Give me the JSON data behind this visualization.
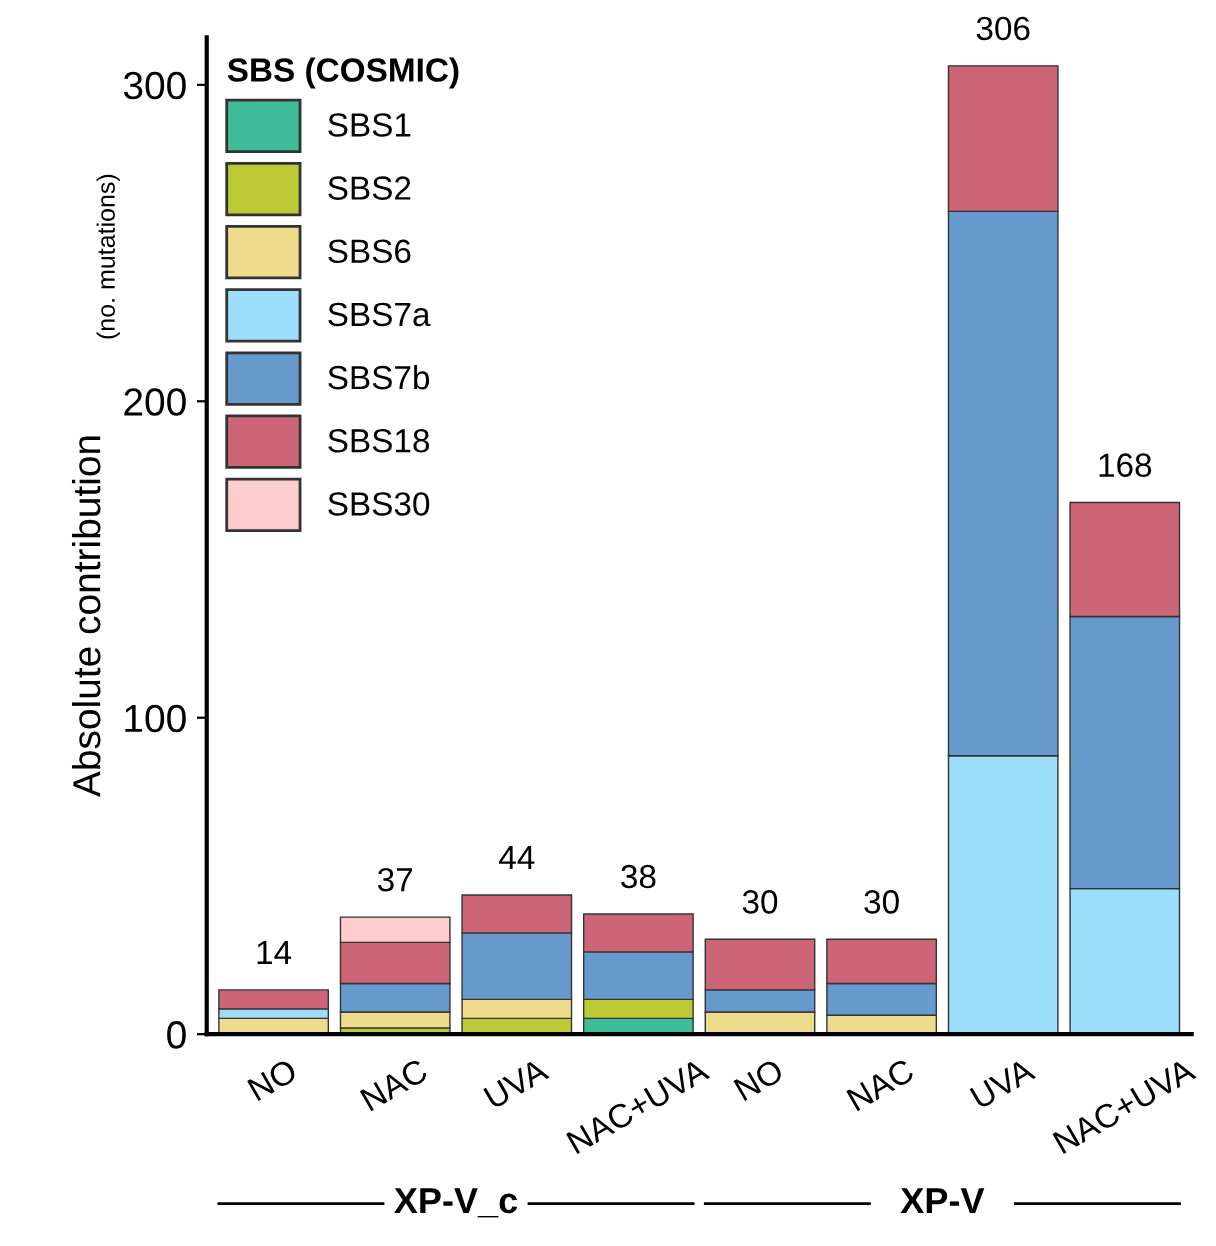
{
  "chart_data": {
    "type": "bar",
    "stacked": true,
    "legend_title": "SBS (COSMIC)",
    "ylabel": "Absolute contribution",
    "categories": [
      "NO",
      "NAC",
      "UVA",
      "NAC+UVA",
      "NO",
      "NAC",
      "UVA",
      "NAC+UVA"
    ],
    "annotations": [
      "(no. mutations)",
      "XP-V_c",
      "XP-V"
    ],
    "series": [
      {
        "name": "SBS1",
        "color": "#3fbc98",
        "values": [
          null,
          null,
          null,
          5,
          null,
          null,
          null,
          null
        ]
      },
      {
        "name": "SBS2",
        "color": "#bccb35",
        "values": [
          null,
          2,
          5,
          6,
          null,
          null,
          null,
          null
        ]
      },
      {
        "name": "SBS6",
        "color": "#eedc8c",
        "values": [
          5,
          5,
          6,
          null,
          7,
          6,
          null,
          null
        ]
      },
      {
        "name": "SBS7a",
        "color": "#9bddfb",
        "values": [
          3,
          null,
          null,
          null,
          null,
          null,
          88,
          46
        ]
      },
      {
        "name": "SBS7b",
        "color": "#6699cc",
        "values": [
          null,
          9,
          21,
          15,
          7,
          10,
          172,
          86
        ]
      },
      {
        "name": "SBS18",
        "color": "#cc6677",
        "values": [
          6,
          13,
          12,
          12,
          16,
          14,
          46,
          36
        ]
      },
      {
        "name": "SBS30",
        "color": "#fdcccc",
        "values": [
          null,
          8,
          null,
          null,
          null,
          null,
          null,
          null
        ]
      }
    ],
    "totals": [
      "14",
      "37",
      "44",
      "38",
      "30",
      "30",
      "306",
      "168"
    ],
    "ylim": [
      0,
      315
    ],
    "yticks": [
      0,
      100,
      200,
      300
    ],
    "grid": false,
    "legend": "top left"
  }
}
